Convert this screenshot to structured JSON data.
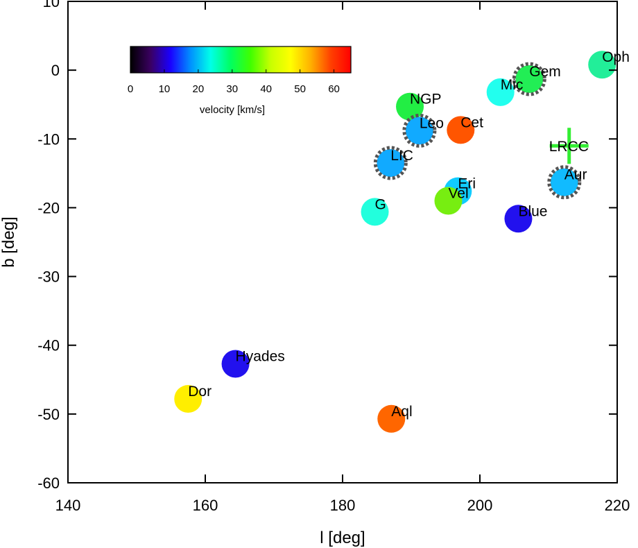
{
  "chart_data": {
    "type": "scatter",
    "title": "",
    "xlabel": "l [deg]",
    "ylabel": "b [deg]",
    "xlim": [
      140,
      220
    ],
    "ylim": [
      -60,
      10
    ],
    "xticks": [
      140,
      160,
      180,
      200,
      220
    ],
    "yticks": [
      10,
      0,
      -10,
      -20,
      -30,
      -40,
      -50,
      -60
    ],
    "grid": false,
    "colorbar": {
      "label": "velocity [km/s]",
      "range": [
        0,
        65
      ],
      "ticks": [
        0,
        10,
        20,
        30,
        40,
        50,
        60
      ],
      "colors": [
        "#000000",
        "#3a0060",
        "#1a00ff",
        "#0090ff",
        "#00ffe8",
        "#00ff60",
        "#40ff00",
        "#c8ff00",
        "#ffff00",
        "#ffb000",
        "#ff4000",
        "#ff0000"
      ]
    },
    "points": [
      {
        "name": "Oph",
        "l": 217.8,
        "b": 0.8,
        "color": "#22ee99",
        "dashed": false
      },
      {
        "name": "Gem",
        "l": 207.2,
        "b": -1.3,
        "color": "#22ee55",
        "dashed": true
      },
      {
        "name": "Mic",
        "l": 203.0,
        "b": -3.2,
        "color": "#22ffee",
        "dashed": false
      },
      {
        "name": "NGP",
        "l": 189.8,
        "b": -5.3,
        "color": "#22ee44",
        "dashed": false
      },
      {
        "name": "Leo",
        "l": 191.2,
        "b": -8.8,
        "color": "#11aaff",
        "dashed": true
      },
      {
        "name": "Cet",
        "l": 197.2,
        "b": -8.7,
        "color": "#ff5500",
        "dashed": false
      },
      {
        "name": "LIC",
        "l": 187.0,
        "b": -13.5,
        "color": "#11aaff",
        "dashed": true
      },
      {
        "name": "Aur",
        "l": 212.3,
        "b": -16.3,
        "color": "#11bbff",
        "dashed": true
      },
      {
        "name": "Eri",
        "l": 196.8,
        "b": -17.6,
        "color": "#11ccff",
        "dashed": false
      },
      {
        "name": "Vel",
        "l": 195.4,
        "b": -19.0,
        "color": "#77ee11",
        "dashed": false
      },
      {
        "name": "G",
        "l": 184.7,
        "b": -20.6,
        "color": "#22ffdd",
        "dashed": false
      },
      {
        "name": "Blue",
        "l": 205.6,
        "b": -21.6,
        "color": "#2211ee",
        "dashed": false
      },
      {
        "name": "Hyades",
        "l": 164.4,
        "b": -42.7,
        "color": "#2211ee",
        "dashed": false
      },
      {
        "name": "Dor",
        "l": 157.5,
        "b": -47.8,
        "color": "#ffee00",
        "dashed": false
      },
      {
        "name": "Aql",
        "l": 187.1,
        "b": -50.7,
        "color": "#ff6600",
        "dashed": false
      }
    ],
    "markers": [
      {
        "name": "LRCC",
        "l": 213.0,
        "b": -11.0,
        "symbol": "cross",
        "color": "#33ee33"
      }
    ]
  }
}
